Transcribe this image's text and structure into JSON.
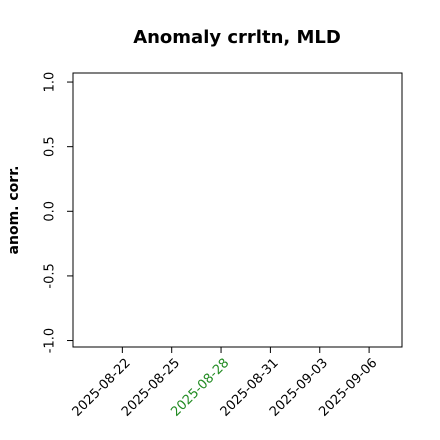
{
  "chart_data": {
    "type": "line",
    "title": "Anomaly crrltn, MLD",
    "ylabel": "anom. corr.",
    "xlim": [
      "2025-08-19",
      "2025-09-08"
    ],
    "xticks": [
      "2025-08-22",
      "2025-08-25",
      "2025-08-28",
      "2025-08-31",
      "2025-09-03",
      "2025-09-06"
    ],
    "xtick_colors": [
      "#000000",
      "#000000",
      "#228b22",
      "#000000",
      "#000000",
      "#000000"
    ],
    "ylim": [
      -1.05,
      1.07
    ],
    "yticks": [
      {
        "value": -1,
        "label": "-1.0"
      },
      -0.5,
      {
        "value": 0,
        "label": "0.0"
      },
      0.5,
      {
        "value": 1,
        "label": "1.0"
      }
    ],
    "grid": false
  }
}
